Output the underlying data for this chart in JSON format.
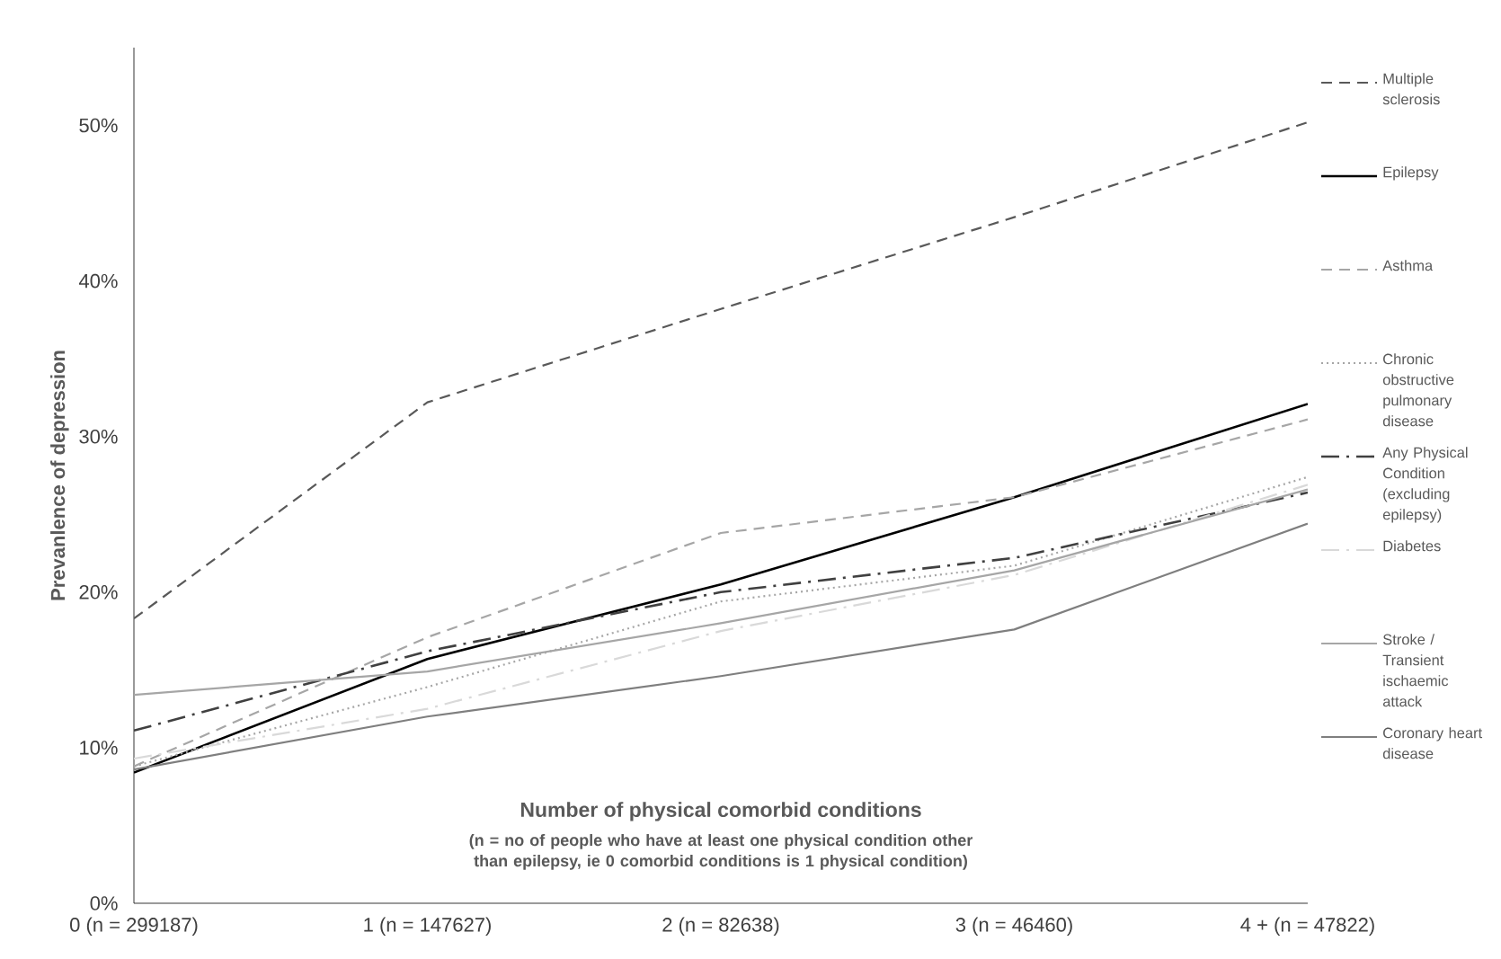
{
  "chart_data": {
    "type": "line",
    "xlabel": "Number of physical comorbid conditions",
    "ylabel": "Prevanlence of depression",
    "categories": [
      "0 (n = 299187)",
      "1 (n = 147627)",
      "2 (n = 82638)",
      "3 (n = 46460)",
      "4 + (n = 47822)"
    ],
    "ylim": [
      0,
      55
    ],
    "yticks": [
      {
        "value": 0,
        "label": "0%"
      },
      {
        "value": 10,
        "label": "10%"
      },
      {
        "value": 20,
        "label": "20%"
      },
      {
        "value": 30,
        "label": "30%"
      },
      {
        "value": 40,
        "label": "40%"
      },
      {
        "value": 50,
        "label": "50%"
      }
    ],
    "annotations": [
      "(n = no of people who have at least one physical condition other than epilepsy, ie 0 comorbid conditions is 1 physical condition)"
    ],
    "legend": "right",
    "grid": false,
    "marker": "none",
    "series": [
      {
        "name": "Multiple sclerosis",
        "color": "#595959",
        "line_style": "dashed",
        "values": [
          18.3,
          32.2,
          38.2,
          44.1,
          50.2
        ]
      },
      {
        "name": "Epilepsy",
        "color": "#000000",
        "line_style": "solid",
        "values": [
          8.4,
          15.7,
          20.5,
          26.1,
          32.1
        ]
      },
      {
        "name": "Asthma",
        "color": "#a6a6a6",
        "line_style": "dashed",
        "values": [
          8.8,
          17.1,
          23.8,
          26.1,
          31.1
        ]
      },
      {
        "name": "Chronic obstructive pulmonary disease",
        "color": "#a6a6a6",
        "line_style": "dotted",
        "values": [
          8.8,
          13.9,
          19.4,
          21.7,
          27.4
        ]
      },
      {
        "name": "Any Physical Condition (excluding epilepsy)",
        "color": "#404040",
        "line_style": "dashdot",
        "values": [
          11.1,
          16.2,
          20.0,
          22.2,
          26.4
        ]
      },
      {
        "name": "Diabetes",
        "color": "#d9d9d9",
        "line_style": "dashdot",
        "values": [
          9.3,
          12.5,
          17.5,
          21.1,
          26.9
        ]
      },
      {
        "name": "Stroke / Transient ischaemic attack",
        "color": "#a6a6a6",
        "line_style": "solid",
        "values": [
          13.4,
          14.9,
          18.0,
          21.4,
          26.6
        ]
      },
      {
        "name": "Coronary heart disease",
        "color": "#7f7f7f",
        "line_style": "solid",
        "values": [
          8.6,
          12.0,
          14.6,
          17.6,
          24.4
        ]
      }
    ]
  }
}
